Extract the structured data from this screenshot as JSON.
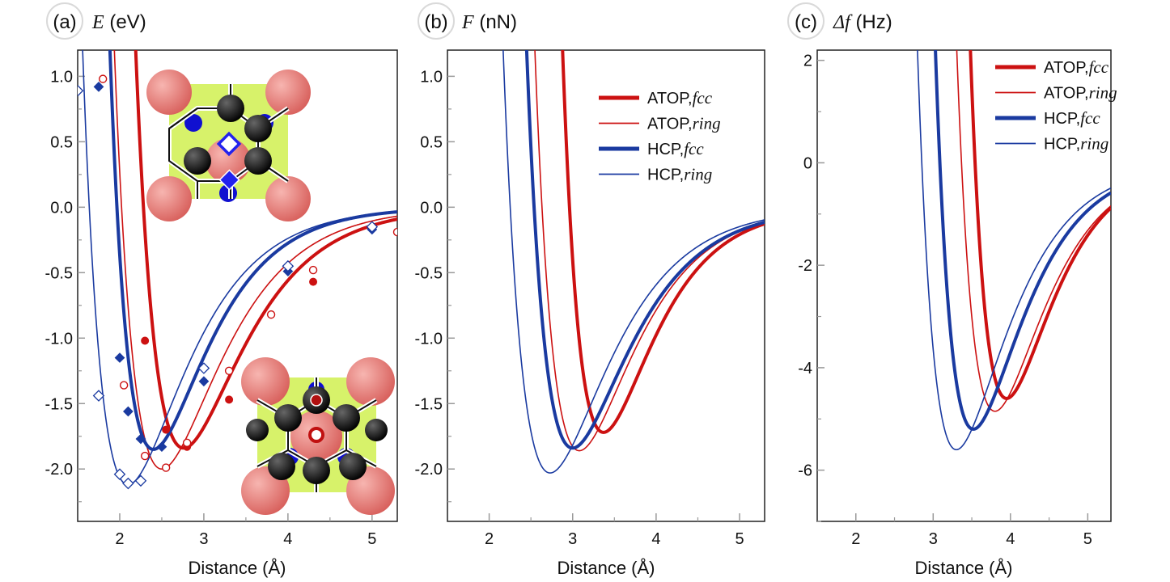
{
  "colors": {
    "red": "#cc1111",
    "blue": "#1a3aa0",
    "axis": "#222222",
    "tick_label": "#111111",
    "panel_label_ring": "#d9d9d9"
  },
  "chart_data": [
    {
      "type": "line",
      "panel_label": "(a)",
      "ylabel_symbol": "E",
      "ylabel_unit": "(eV)",
      "xlabel": "Distance (Å)",
      "xlim": [
        1.5,
        5.3
      ],
      "ylim": [
        -2.4,
        1.2
      ],
      "x_ticks": [
        "2",
        "3",
        "4",
        "5"
      ],
      "y_ticks": [
        "1.0",
        "0.5",
        "0.0",
        "-0.5",
        "-1.0",
        "-1.5",
        "-2.0"
      ],
      "series": [
        {
          "name": "ATOP,fcc",
          "color": "#cc1111",
          "width": "thick",
          "De": 1.84,
          "r0": 2.76,
          "a": 1.45,
          "points": {
            "marker": "filled-circle",
            "x": [
              2.3,
              2.55,
              2.8,
              3.3,
              4.3,
              5.3
            ],
            "y": [
              -1.02,
              -1.7,
              -1.83,
              -1.47,
              -0.57,
              -0.19
            ]
          }
        },
        {
          "name": "ATOP,ring",
          "color": "#cc1111",
          "width": "thin",
          "De": 2.0,
          "r0": 2.5,
          "a": 1.45,
          "points": {
            "marker": "open-circle",
            "x": [
              1.8,
              2.05,
              2.3,
              2.55,
              2.8,
              3.3,
              3.8,
              4.3,
              5.3
            ],
            "y": [
              0.98,
              -1.36,
              -1.9,
              -1.99,
              -1.8,
              -1.25,
              -0.82,
              -0.48,
              -0.19
            ]
          }
        },
        {
          "name": "HCP,fcc",
          "color": "#1a3aa0",
          "width": "thick",
          "De": 1.85,
          "r0": 2.4,
          "a": 1.6,
          "points": {
            "marker": "filled-diamond",
            "x": [
              1.75,
              2.0,
              2.1,
              2.25,
              2.5,
              3.0,
              4.0,
              5.0
            ],
            "y": [
              0.92,
              -1.15,
              -1.56,
              -1.77,
              -1.83,
              -1.33,
              -0.49,
              -0.17
            ]
          }
        },
        {
          "name": "HCP,ring",
          "color": "#1a3aa0",
          "width": "thin",
          "De": 2.12,
          "r0": 2.1,
          "a": 1.5,
          "points": {
            "marker": "open-diamond",
            "x": [
              1.5,
              1.75,
              2.0,
              2.1,
              2.25,
              3.0,
              4.0,
              5.0
            ],
            "y": [
              0.89,
              -1.44,
              -2.04,
              -2.11,
              -2.09,
              -1.23,
              -0.45,
              -0.15
            ]
          }
        }
      ]
    },
    {
      "type": "line",
      "panel_label": "(b)",
      "ylabel_symbol": "F",
      "ylabel_unit": "(nN)",
      "xlabel": "Distance (Å)",
      "xlim": [
        1.5,
        5.3
      ],
      "ylim": [
        -2.4,
        1.2
      ],
      "x_ticks": [
        "2",
        "3",
        "4",
        "5"
      ],
      "y_ticks": [
        "1.0",
        "0.5",
        "0.0",
        "-0.5",
        "-1.0",
        "-1.5",
        "-2.0"
      ],
      "legend": [
        "ATOP,",
        "fcc",
        "ATOP,",
        "ring",
        "HCP,",
        "fcc",
        "HCP,",
        "ring"
      ],
      "series": [
        {
          "name": "ATOP,fcc",
          "color": "#cc1111",
          "width": "thick",
          "De": 1.72,
          "r0": 3.37,
          "a": 1.7
        },
        {
          "name": "ATOP,ring",
          "color": "#cc1111",
          "width": "thin",
          "De": 1.86,
          "r0": 3.08,
          "a": 1.55
        },
        {
          "name": "HCP,fcc",
          "color": "#1a3aa0",
          "width": "thick",
          "De": 1.84,
          "r0": 3.0,
          "a": 1.5
        },
        {
          "name": "HCP,ring",
          "color": "#1a3aa0",
          "width": "thin",
          "De": 2.03,
          "r0": 2.73,
          "a": 1.45
        }
      ]
    },
    {
      "type": "line",
      "panel_label": "(c)",
      "ylabel_symbol": "Δf",
      "ylabel_unit": "(Hz)",
      "xlabel": "Distance (Å)",
      "xlim": [
        1.5,
        5.3
      ],
      "ylim": [
        -7.0,
        2.2
      ],
      "x_ticks": [
        "2",
        "3",
        "4",
        "5"
      ],
      "y_ticks": [
        "2",
        "0",
        "-2",
        "-4",
        "-6"
      ],
      "legend": [
        "ATOP,",
        "fcc",
        "ATOP,",
        "ring",
        "HCP,",
        "fcc",
        "HCP,",
        "ring"
      ],
      "series": [
        {
          "name": "ATOP,fcc",
          "color": "#cc1111",
          "width": "thick",
          "De": 4.6,
          "r0": 3.95,
          "a": 1.7
        },
        {
          "name": "ATOP,ring",
          "color": "#cc1111",
          "width": "thin",
          "De": 4.85,
          "r0": 3.8,
          "a": 1.6
        },
        {
          "name": "HCP,fcc",
          "color": "#1a3aa0",
          "width": "thick",
          "De": 5.2,
          "r0": 3.52,
          "a": 1.6
        },
        {
          "name": "HCP,ring",
          "color": "#1a3aa0",
          "width": "thin",
          "De": 5.6,
          "r0": 3.3,
          "a": 1.55
        }
      ]
    }
  ]
}
